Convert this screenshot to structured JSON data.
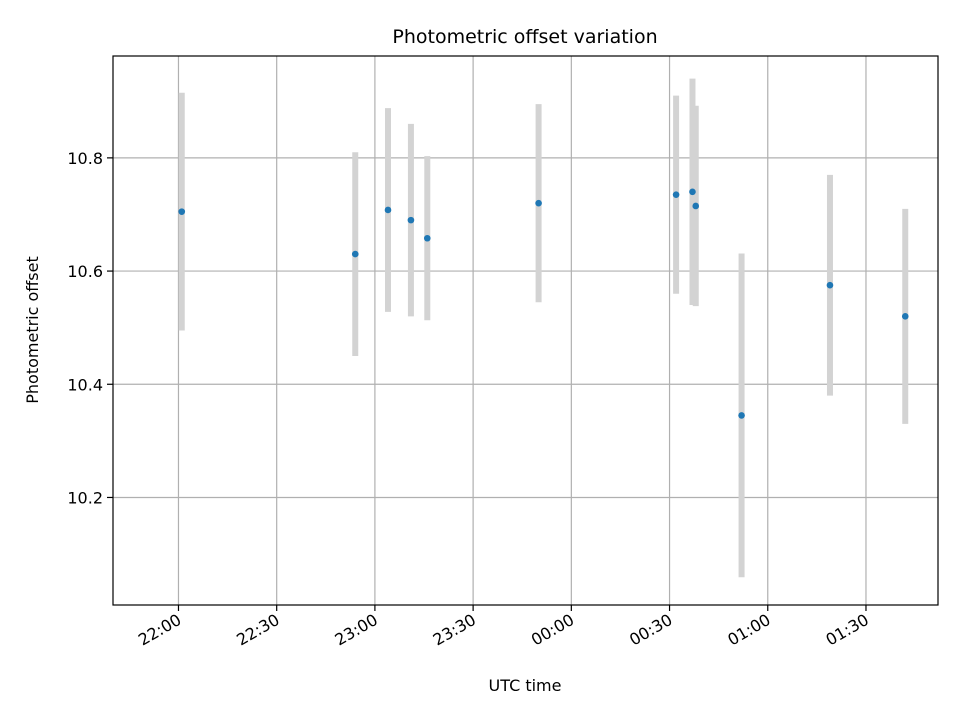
{
  "chart_data": {
    "type": "scatter",
    "title": "Photometric offset variation",
    "xlabel": "UTC time",
    "ylabel": "Photometric offset",
    "x_axis_type": "time",
    "xlim": [
      "21:40",
      "01:52"
    ],
    "ylim": [
      10.01,
      10.98
    ],
    "x_ticks": [
      "22:00",
      "22:30",
      "23:00",
      "23:30",
      "00:00",
      "00:30",
      "01:00",
      "01:30"
    ],
    "y_ticks": [
      10.2,
      10.4,
      10.6,
      10.8
    ],
    "grid": true,
    "marker_color": "#1f77b4",
    "errorbar_color": "#d3d3d3",
    "series": [
      {
        "x": [
          "22:01",
          "22:54",
          "23:04",
          "23:11",
          "23:16",
          "23:50",
          "00:32",
          "00:37",
          "00:38",
          "00:52",
          "01:19",
          "01:42"
        ],
        "y": [
          10.705,
          10.63,
          10.708,
          10.69,
          10.658,
          10.72,
          10.735,
          10.74,
          10.715,
          10.345,
          10.575,
          10.52
        ],
        "yerr": [
          0.21,
          0.18,
          0.18,
          0.17,
          0.145,
          0.175,
          0.175,
          0.2,
          0.177,
          0.286,
          0.195,
          0.19
        ]
      }
    ]
  }
}
